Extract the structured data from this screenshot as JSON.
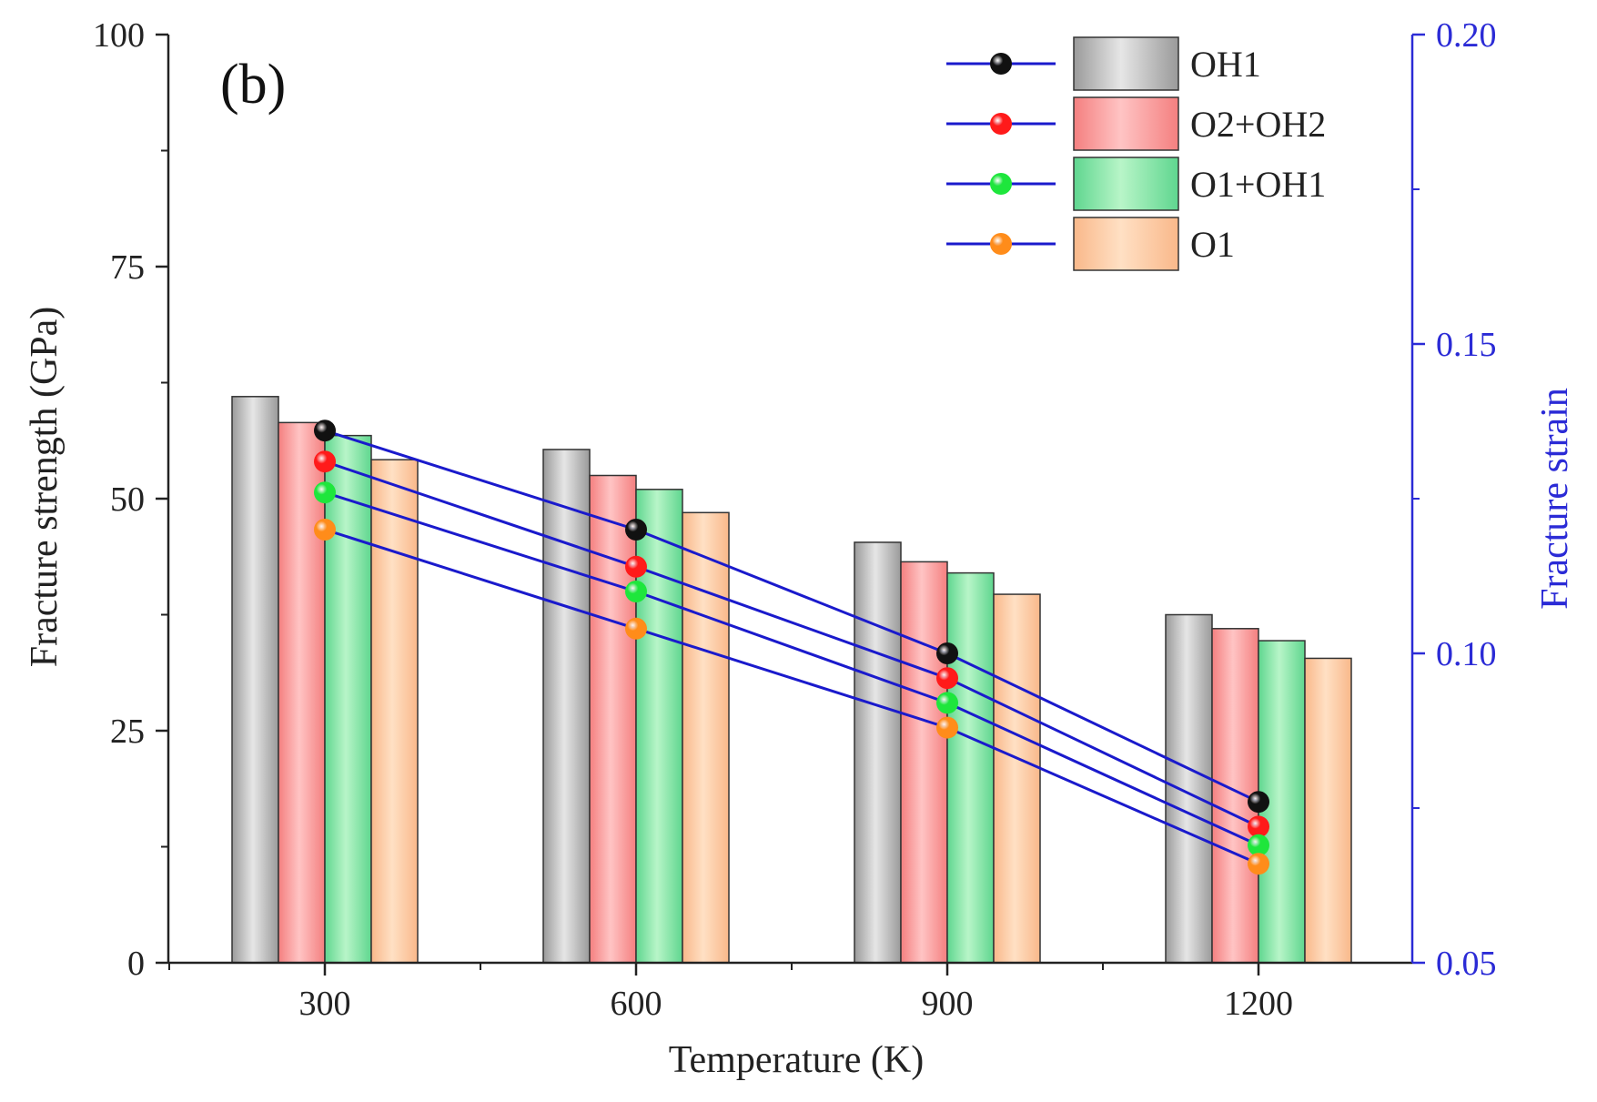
{
  "chart_data": {
    "type": "bar",
    "panel_label": "(b)",
    "xlabel": "Temperature (K)",
    "ylabel": "Fracture strength (GPa)",
    "y2label": "Fracture strength",
    "y2label_text": "Fracture strain",
    "categories": [
      "300",
      "600",
      "900",
      "1200"
    ],
    "ylim": [
      0,
      100
    ],
    "yticks": [
      "0",
      "25",
      "50",
      "75",
      "100"
    ],
    "y2lim": [
      0.05,
      0.2
    ],
    "y2ticks": [
      "0.05",
      "0.10",
      "0.15",
      "0.20"
    ],
    "series": [
      {
        "name": "OH1",
        "values": [
          61.0,
          55.3,
          45.3,
          37.5
        ],
        "strain": [
          0.136,
          0.12,
          0.1,
          0.076
        ]
      },
      {
        "name": "O2+OH2",
        "values": [
          58.2,
          52.5,
          43.2,
          36.0
        ],
        "strain": [
          0.131,
          0.114,
          0.096,
          0.072
        ]
      },
      {
        "name": "O1+OH1",
        "values": [
          56.8,
          51.0,
          42.0,
          34.7
        ],
        "strain": [
          0.126,
          0.11,
          0.092,
          0.069
        ]
      },
      {
        "name": "O1",
        "values": [
          54.2,
          48.5,
          39.7,
          32.8
        ],
        "strain": [
          0.12,
          0.104,
          0.088,
          0.066
        ]
      }
    ],
    "colors": {
      "bars": [
        "#9a9a9a",
        "#f47f7f",
        "#5fd68f",
        "#f9b88a"
      ],
      "bars_light": [
        "#e6e6e6",
        "#ffc4c4",
        "#b8f5c8",
        "#ffe0c4"
      ],
      "markers": [
        "#111111",
        "#ff1a1a",
        "#1ee63c",
        "#ff8c1a"
      ],
      "strain_line": "#1a1acc",
      "right_axis": "#2b2bd6"
    },
    "grid": false,
    "legend_position": "top-right"
  }
}
